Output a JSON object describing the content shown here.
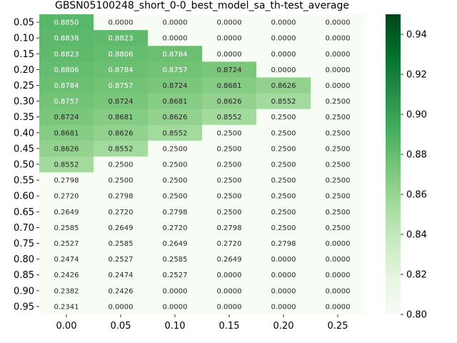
{
  "chart_data": {
    "type": "heatmap",
    "title": "GBSN05100248_short_0-0_best_model_sa_th-test_average",
    "x_categories": [
      "0.00",
      "0.05",
      "0.10",
      "0.15",
      "0.20",
      "0.25"
    ],
    "y_categories": [
      "0.05",
      "0.10",
      "0.15",
      "0.20",
      "0.25",
      "0.30",
      "0.35",
      "0.40",
      "0.45",
      "0.50",
      "0.55",
      "0.60",
      "0.65",
      "0.70",
      "0.75",
      "0.80",
      "0.85",
      "0.90",
      "0.95"
    ],
    "values": [
      [
        "0.8850",
        "0.0000",
        "0.0000",
        "0.0000",
        "0.0000",
        "0.0000"
      ],
      [
        "0.8838",
        "0.8823",
        "0.0000",
        "0.0000",
        "0.0000",
        "0.0000"
      ],
      [
        "0.8823",
        "0.8806",
        "0.8784",
        "0.0000",
        "0.0000",
        "0.0000"
      ],
      [
        "0.8806",
        "0.8784",
        "0.8757",
        "0.8724",
        "0.0000",
        "0.0000"
      ],
      [
        "0.8784",
        "0.8757",
        "0.8724",
        "0.8681",
        "0.8626",
        "0.0000"
      ],
      [
        "0.8757",
        "0.8724",
        "0.8681",
        "0.8626",
        "0.8552",
        "0.2500"
      ],
      [
        "0.8724",
        "0.8681",
        "0.8626",
        "0.8552",
        "0.2500",
        "0.2500"
      ],
      [
        "0.8681",
        "0.8626",
        "0.8552",
        "0.2500",
        "0.2500",
        "0.2500"
      ],
      [
        "0.8626",
        "0.8552",
        "0.2500",
        "0.2500",
        "0.2500",
        "0.2500"
      ],
      [
        "0.8552",
        "0.2500",
        "0.2500",
        "0.2500",
        "0.2500",
        "0.2500"
      ],
      [
        "0.2798",
        "0.2500",
        "0.2500",
        "0.2500",
        "0.2500",
        "0.2500"
      ],
      [
        "0.2720",
        "0.2798",
        "0.2500",
        "0.2500",
        "0.2500",
        "0.2500"
      ],
      [
        "0.2649",
        "0.2720",
        "0.2798",
        "0.2500",
        "0.2500",
        "0.2500"
      ],
      [
        "0.2585",
        "0.2649",
        "0.2720",
        "0.2798",
        "0.2500",
        "0.2500"
      ],
      [
        "0.2527",
        "0.2585",
        "0.2649",
        "0.2720",
        "0.2798",
        "0.0000"
      ],
      [
        "0.2474",
        "0.2527",
        "0.2585",
        "0.2649",
        "0.0000",
        "0.0000"
      ],
      [
        "0.2426",
        "0.2474",
        "0.2527",
        "0.0000",
        "0.0000",
        "0.0000"
      ],
      [
        "0.2382",
        "0.2426",
        "0.0000",
        "0.0000",
        "0.0000",
        "0.0000"
      ],
      [
        "0.2341",
        "0.0000",
        "0.0000",
        "0.0000",
        "0.0000",
        "0.0000"
      ]
    ],
    "colorbar": {
      "min": 0.8,
      "max": 0.95,
      "ticks": [
        "0.80",
        "0.82",
        "0.84",
        "0.86",
        "0.88",
        "0.90",
        "0.92",
        "0.94"
      ],
      "colormap": "Greens"
    },
    "xlabel": "",
    "ylabel": ""
  }
}
